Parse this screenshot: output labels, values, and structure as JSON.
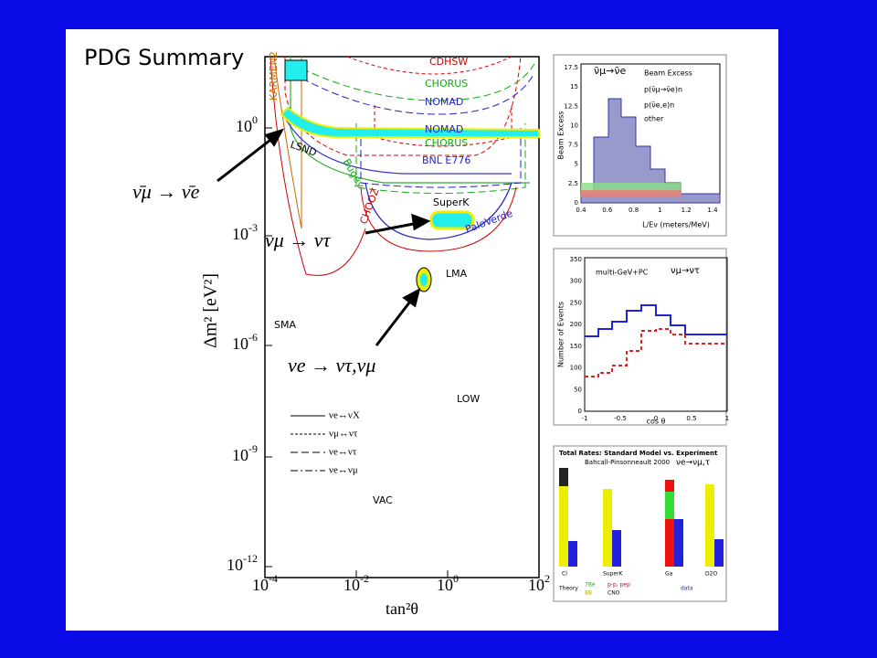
{
  "title": "PDG Summary",
  "main_plot": {
    "x_axis_label": "tan²θ",
    "y_axis_label": "Δm² [eV²]",
    "xticks": [
      {
        "base": "10",
        "exp": "-4"
      },
      {
        "base": "10",
        "exp": "-2"
      },
      {
        "base": "10",
        "exp": "0"
      },
      {
        "base": "10",
        "exp": "2"
      }
    ],
    "yticks": [
      {
        "base": "10",
        "exp": "0"
      },
      {
        "base": "10",
        "exp": "-3"
      },
      {
        "base": "10",
        "exp": "-6"
      },
      {
        "base": "10",
        "exp": "-9"
      },
      {
        "base": "10",
        "exp": "-12"
      }
    ],
    "regions": {
      "cdhsw": "CDHSW",
      "chorus_top": "CHORUS",
      "nomad_top": "NOMAD",
      "nomad_bottom": "NOMAD",
      "chorus_bottom": "CHORUS",
      "bnl": "BNL E776",
      "karmen": "KARMEN2",
      "lsnd": "LSND",
      "bugey": "Bugey",
      "chooz": "CHOOZ",
      "superk": "SuperK",
      "paloverde": "PaloVerde",
      "lma": "LMA",
      "sma": "SMA",
      "low": "LOW",
      "vac": "VAC"
    },
    "legend": [
      "νe↔νX",
      "νμ↔ντ",
      "νe↔ντ",
      "νe↔νμ"
    ]
  },
  "annotations": {
    "nubar": "ν̄μ → ν̄e",
    "numu_nutau": "νμ → ντ",
    "nue": "νe → ντ,νμ"
  },
  "inset_lsnd": {
    "title": "ν̄μ→ν̄e",
    "legend": [
      "Beam Excess",
      "p(ν̄μ→ν̄e)n",
      "p(ν̄e,e)n",
      "other"
    ],
    "y_label": "Beam Excess",
    "x_label": "L/Eν (meters/MeV)",
    "xticks": [
      "0.4",
      "0.6",
      "0.8",
      "1",
      "1.2",
      "1.4"
    ],
    "yticks": [
      "0",
      "2.5",
      "5",
      "7.5",
      "10",
      "12.5",
      "15",
      "17.5"
    ]
  },
  "inset_atm": {
    "label": "multi-GeV+PC",
    "title": "νμ→ντ",
    "y_label": "Number of Events",
    "x_label": "cos θ",
    "xticks": [
      "-1",
      "-0.5",
      "0",
      "0.5",
      "1"
    ],
    "yticks": [
      "0",
      "50",
      "100",
      "150",
      "200",
      "250",
      "300",
      "350"
    ]
  },
  "inset_solar": {
    "title": "Total Rates: Standard Model vs. Experiment",
    "subtitle": "Bahcall-Pinsonneault 2000",
    "title_arrow": "νe→νμ,τ",
    "experiments": [
      "Cl",
      "SuperK",
      "Ga",
      "D2O"
    ],
    "legend": [
      "Theory",
      "7Be",
      "8B",
      "p-p, pep",
      "CNO",
      "data"
    ]
  }
}
